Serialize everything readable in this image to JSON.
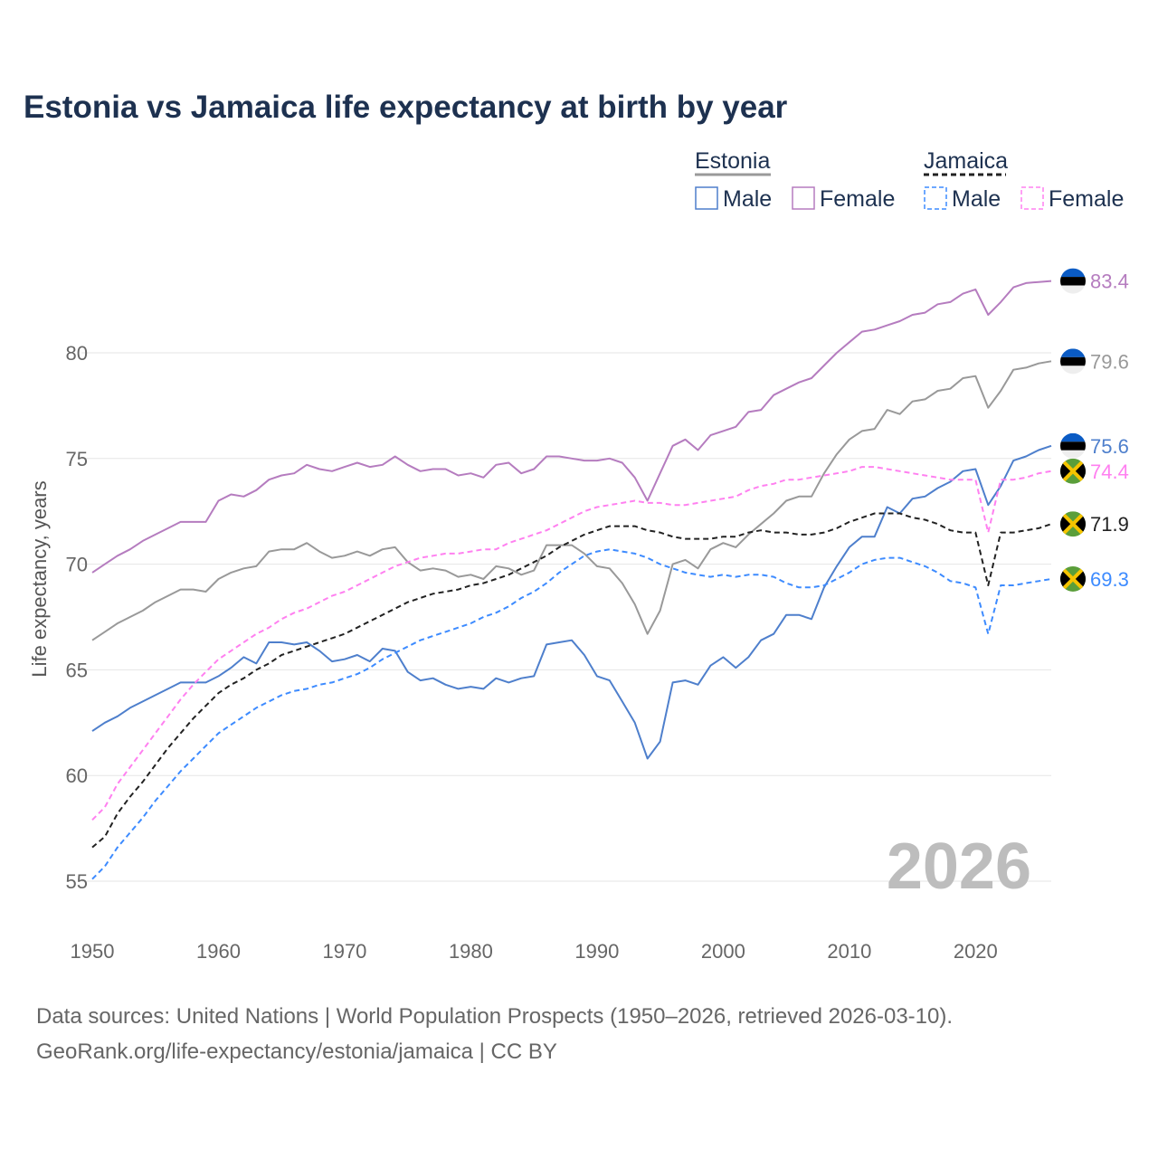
{
  "chart_data": {
    "type": "line",
    "title": "Estonia vs Jamaica life expectancy at birth by year",
    "xlabel": "",
    "ylabel": "Life expectancy, years",
    "xlim": [
      1950,
      2026
    ],
    "ylim": [
      53,
      85
    ],
    "xticks": [
      "1950",
      "1960",
      "1970",
      "1980",
      "1990",
      "2000",
      "2010",
      "2020"
    ],
    "yticks": [
      "55",
      "60",
      "65",
      "70",
      "75",
      "80"
    ],
    "grid": true,
    "year_watermark": "2026",
    "legend": {
      "position": "top-right",
      "groups": [
        {
          "name": "Estonia",
          "items": [
            "Male",
            "Female"
          ]
        },
        {
          "name": "Jamaica",
          "items": [
            "Male",
            "Female"
          ]
        }
      ]
    },
    "x_start": 1950,
    "series": [
      {
        "name": "Estonia Female",
        "country": "Estonia",
        "color": "#b57cbf",
        "dashed": false,
        "end_label": "83.4",
        "values": [
          69.6,
          70.0,
          70.4,
          70.7,
          71.1,
          71.4,
          71.7,
          72.0,
          72.0,
          72.0,
          73.0,
          73.3,
          73.2,
          73.5,
          74.0,
          74.2,
          74.3,
          74.7,
          74.5,
          74.4,
          74.6,
          74.8,
          74.6,
          74.7,
          75.1,
          74.7,
          74.4,
          74.5,
          74.5,
          74.2,
          74.3,
          74.1,
          74.7,
          74.8,
          74.3,
          74.5,
          75.1,
          75.1,
          75.0,
          74.9,
          74.9,
          75.0,
          74.8,
          74.1,
          73.0,
          74.3,
          75.6,
          75.9,
          75.4,
          76.1,
          76.3,
          76.5,
          77.2,
          77.3,
          78.0,
          78.3,
          78.6,
          78.8,
          79.4,
          80.0,
          80.5,
          81.0,
          81.1,
          81.3,
          81.5,
          81.8,
          81.9,
          82.3,
          82.4,
          82.8,
          83.0,
          81.8,
          82.4,
          83.1,
          83.3,
          83.35,
          83.4
        ]
      },
      {
        "name": "Estonia Both",
        "country": "Estonia",
        "color": "#999999",
        "dashed": false,
        "end_label": "79.6",
        "values": [
          66.4,
          66.8,
          67.2,
          67.5,
          67.8,
          68.2,
          68.5,
          68.8,
          68.8,
          68.7,
          69.3,
          69.6,
          69.8,
          69.9,
          70.6,
          70.7,
          70.7,
          71.0,
          70.6,
          70.3,
          70.4,
          70.6,
          70.4,
          70.7,
          70.8,
          70.1,
          69.7,
          69.8,
          69.7,
          69.4,
          69.5,
          69.3,
          69.9,
          69.8,
          69.5,
          69.7,
          70.9,
          70.9,
          70.9,
          70.5,
          69.9,
          69.8,
          69.1,
          68.1,
          66.7,
          67.8,
          70.0,
          70.2,
          69.8,
          70.7,
          71.0,
          70.8,
          71.4,
          71.9,
          72.4,
          73.0,
          73.2,
          73.2,
          74.3,
          75.2,
          75.9,
          76.3,
          76.4,
          77.3,
          77.1,
          77.7,
          77.8,
          78.2,
          78.3,
          78.8,
          78.9,
          77.4,
          78.2,
          79.2,
          79.3,
          79.5,
          79.6
        ]
      },
      {
        "name": "Estonia Male",
        "country": "Estonia",
        "color": "#4e7fcc",
        "dashed": false,
        "end_label": "75.6",
        "values": [
          62.1,
          62.5,
          62.8,
          63.2,
          63.5,
          63.8,
          64.1,
          64.4,
          64.4,
          64.4,
          64.7,
          65.1,
          65.6,
          65.3,
          66.3,
          66.3,
          66.2,
          66.3,
          65.9,
          65.4,
          65.5,
          65.7,
          65.4,
          66.0,
          65.9,
          64.9,
          64.5,
          64.6,
          64.3,
          64.1,
          64.2,
          64.1,
          64.6,
          64.4,
          64.6,
          64.7,
          66.2,
          66.3,
          66.4,
          65.7,
          64.7,
          64.5,
          63.5,
          62.5,
          60.8,
          61.6,
          64.4,
          64.5,
          64.3,
          65.2,
          65.6,
          65.1,
          65.6,
          66.4,
          66.7,
          67.6,
          67.6,
          67.4,
          68.9,
          69.9,
          70.8,
          71.3,
          71.3,
          72.7,
          72.4,
          73.1,
          73.2,
          73.6,
          73.9,
          74.4,
          74.5,
          72.8,
          73.7,
          74.9,
          75.1,
          75.4,
          75.6
        ]
      },
      {
        "name": "Jamaica Female",
        "country": "Jamaica",
        "color": "#ff80f0",
        "dashed": true,
        "end_label": "74.4",
        "values": [
          57.9,
          58.5,
          59.6,
          60.4,
          61.2,
          62.0,
          62.8,
          63.6,
          64.3,
          64.9,
          65.5,
          65.9,
          66.3,
          66.7,
          67.0,
          67.4,
          67.7,
          67.9,
          68.2,
          68.5,
          68.7,
          69.0,
          69.3,
          69.6,
          69.9,
          70.1,
          70.3,
          70.4,
          70.5,
          70.5,
          70.6,
          70.7,
          70.7,
          71.0,
          71.2,
          71.4,
          71.6,
          71.9,
          72.2,
          72.5,
          72.7,
          72.8,
          72.9,
          73.0,
          72.9,
          72.9,
          72.8,
          72.8,
          72.9,
          73.0,
          73.1,
          73.2,
          73.5,
          73.7,
          73.8,
          74.0,
          74.0,
          74.1,
          74.2,
          74.3,
          74.4,
          74.6,
          74.6,
          74.5,
          74.4,
          74.3,
          74.2,
          74.1,
          74.0,
          74.0,
          74.0,
          71.5,
          74.0,
          74.0,
          74.1,
          74.3,
          74.4
        ]
      },
      {
        "name": "Jamaica Both",
        "country": "Jamaica",
        "color": "#222222",
        "dashed": true,
        "end_label": "71.9",
        "values": [
          56.6,
          57.1,
          58.2,
          59.0,
          59.7,
          60.5,
          61.3,
          62.0,
          62.7,
          63.3,
          63.9,
          64.3,
          64.6,
          65.0,
          65.3,
          65.7,
          65.9,
          66.1,
          66.3,
          66.5,
          66.7,
          67.0,
          67.3,
          67.6,
          67.9,
          68.2,
          68.4,
          68.6,
          68.7,
          68.8,
          69.0,
          69.1,
          69.3,
          69.5,
          69.8,
          70.1,
          70.4,
          70.8,
          71.1,
          71.4,
          71.6,
          71.8,
          71.8,
          71.8,
          71.6,
          71.5,
          71.3,
          71.2,
          71.2,
          71.2,
          71.3,
          71.3,
          71.5,
          71.6,
          71.5,
          71.5,
          71.4,
          71.4,
          71.5,
          71.7,
          72.0,
          72.2,
          72.4,
          72.4,
          72.4,
          72.2,
          72.1,
          71.9,
          71.6,
          71.5,
          71.5,
          69.0,
          71.5,
          71.5,
          71.6,
          71.7,
          71.9
        ]
      },
      {
        "name": "Jamaica Male",
        "country": "Jamaica",
        "color": "#3d8bff",
        "dashed": true,
        "end_label": "69.3",
        "values": [
          55.1,
          55.7,
          56.6,
          57.3,
          58.0,
          58.8,
          59.5,
          60.2,
          60.8,
          61.4,
          62.0,
          62.4,
          62.8,
          63.2,
          63.5,
          63.8,
          64.0,
          64.1,
          64.3,
          64.4,
          64.6,
          64.8,
          65.1,
          65.5,
          65.8,
          66.1,
          66.4,
          66.6,
          66.8,
          67.0,
          67.2,
          67.5,
          67.7,
          68.0,
          68.4,
          68.7,
          69.1,
          69.6,
          70.0,
          70.4,
          70.6,
          70.7,
          70.6,
          70.5,
          70.3,
          70.0,
          69.8,
          69.6,
          69.5,
          69.4,
          69.5,
          69.4,
          69.5,
          69.5,
          69.4,
          69.1,
          68.9,
          68.9,
          69.0,
          69.3,
          69.6,
          70.0,
          70.2,
          70.3,
          70.3,
          70.1,
          69.9,
          69.6,
          69.2,
          69.1,
          68.9,
          66.7,
          69.0,
          69.0,
          69.1,
          69.2,
          69.3
        ]
      }
    ]
  },
  "source": {
    "line1": "Data sources: United Nations | World Population Prospects (1950–2026, retrieved 2026-03-10).",
    "line2": "GeoRank.org/life-expectancy/estonia/jamaica | CC BY"
  }
}
